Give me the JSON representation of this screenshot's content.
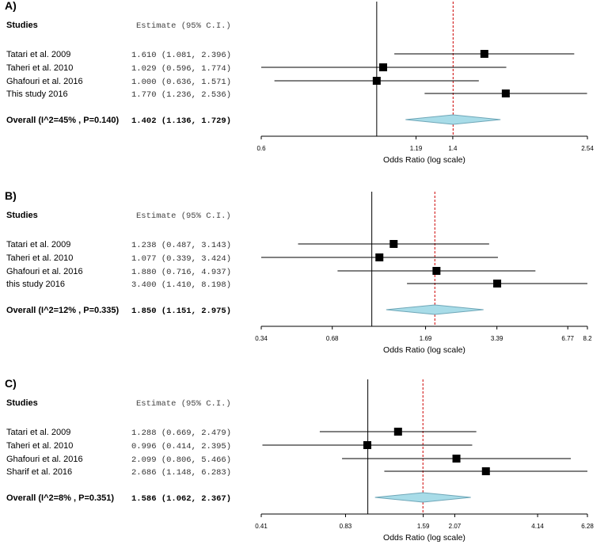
{
  "colors": {
    "box": "#000000",
    "ci_line": "#000000",
    "null_line": "#000000",
    "ref_line": "#cc0000",
    "diamond_fill": "#a8dce8",
    "diamond_stroke": "#6fa7b8"
  },
  "chart_data": [
    {
      "type": "forest",
      "panel_label": "A)",
      "studies_header": "Studies",
      "estimate_header": "Estimate (95% C.I.)",
      "xlabel": "Odds Ratio (log scale)",
      "x_scale": "log",
      "xlim": [
        0.6,
        2.54
      ],
      "null_value": 1.0,
      "ticks": [
        {
          "value": 0.6,
          "label": "0.6"
        },
        {
          "value": 1.19,
          "label": "1.19"
        },
        {
          "value": 1.4,
          "label": "1.4"
        },
        {
          "value": 2.54,
          "label": "2.54"
        }
      ],
      "studies": [
        {
          "name": "Tatari et al. 2009",
          "or": 1.61,
          "lower": 1.081,
          "upper": 2.396,
          "estimate_text": "1.610 (1.081, 2.396)"
        },
        {
          "name": "Taheri et al. 2010",
          "or": 1.029,
          "lower": 0.596,
          "upper": 1.774,
          "estimate_text": "1.029 (0.596, 1.774)"
        },
        {
          "name": "Ghafouri et al.  2016",
          "or": 1.0,
          "lower": 0.636,
          "upper": 1.571,
          "estimate_text": "1.000 (0.636, 1.571)"
        },
        {
          "name": "This study 2016",
          "or": 1.77,
          "lower": 1.236,
          "upper": 2.536,
          "estimate_text": "1.770 (1.236, 2.536)"
        }
      ],
      "overall": {
        "label": "Overall (I^2=45% , P=0.140)",
        "or": 1.402,
        "lower": 1.136,
        "upper": 1.729,
        "estimate_text": "1.402 (1.136, 1.729)"
      }
    },
    {
      "type": "forest",
      "panel_label": "B)",
      "studies_header": "Studies",
      "estimate_header": "Estimate (95% C.I.)",
      "xlabel": "Odds Ratio (log scale)",
      "x_scale": "log",
      "xlim": [
        0.34,
        8.2
      ],
      "null_value": 1.0,
      "ticks": [
        {
          "value": 0.34,
          "label": "0.34"
        },
        {
          "value": 0.68,
          "label": "0.68"
        },
        {
          "value": 1.69,
          "label": "1.69"
        },
        {
          "value": 3.39,
          "label": "3.39"
        },
        {
          "value": 6.77,
          "label": "6.77"
        },
        {
          "value": 8.2,
          "label": "8.2"
        }
      ],
      "studies": [
        {
          "name": "Tatari et al. 2009",
          "or": 1.238,
          "lower": 0.487,
          "upper": 3.143,
          "estimate_text": "1.238 (0.487, 3.143)"
        },
        {
          "name": "Taheri et al. 2010",
          "or": 1.077,
          "lower": 0.339,
          "upper": 3.424,
          "estimate_text": "1.077 (0.339, 3.424)"
        },
        {
          "name": "Ghafouri et al. 2016",
          "or": 1.88,
          "lower": 0.716,
          "upper": 4.937,
          "estimate_text": "1.880 (0.716, 4.937)"
        },
        {
          "name": "this study 2016",
          "or": 3.4,
          "lower": 1.41,
          "upper": 8.198,
          "estimate_text": "3.400 (1.410, 8.198)"
        }
      ],
      "overall": {
        "label": "Overall (I^2=12% , P=0.335)",
        "or": 1.85,
        "lower": 1.151,
        "upper": 2.975,
        "estimate_text": "1.850 (1.151, 2.975)"
      }
    },
    {
      "type": "forest",
      "panel_label": "C)",
      "studies_header": "Studies",
      "estimate_header": "Estimate (95% C.I.)",
      "xlabel": "Odds Ratio (log scale)",
      "x_scale": "log",
      "xlim": [
        0.41,
        6.28
      ],
      "null_value": 1.0,
      "ticks": [
        {
          "value": 0.41,
          "label": "0.41"
        },
        {
          "value": 0.83,
          "label": "0.83"
        },
        {
          "value": 1.59,
          "label": "1.59"
        },
        {
          "value": 2.07,
          "label": "2.07"
        },
        {
          "value": 4.14,
          "label": "4.14"
        },
        {
          "value": 6.28,
          "label": "6.28"
        }
      ],
      "studies": [
        {
          "name": "Tatari et al. 2009",
          "or": 1.288,
          "lower": 0.669,
          "upper": 2.479,
          "estimate_text": "1.288 (0.669, 2.479)"
        },
        {
          "name": "Taheri et al. 2010",
          "or": 0.996,
          "lower": 0.414,
          "upper": 2.395,
          "estimate_text": "0.996 (0.414, 2.395)"
        },
        {
          "name": "Ghafouri et al. 2016",
          "or": 2.099,
          "lower": 0.806,
          "upper": 5.466,
          "estimate_text": "2.099 (0.806, 5.466)"
        },
        {
          "name": "Sharif et al. 2016",
          "or": 2.686,
          "lower": 1.148,
          "upper": 6.283,
          "estimate_text": "2.686 (1.148, 6.283)"
        }
      ],
      "overall": {
        "label": "Overall (I^2=8% , P=0.351)",
        "or": 1.586,
        "lower": 1.062,
        "upper": 2.367,
        "estimate_text": "1.586 (1.062, 2.367)"
      }
    }
  ]
}
